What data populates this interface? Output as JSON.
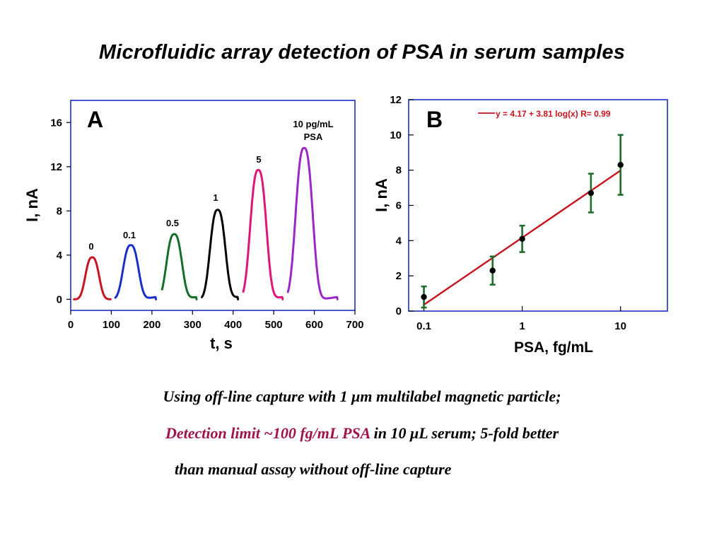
{
  "slide": {
    "title": "Microfluidic array detection of PSA in serum samples",
    "caption": {
      "line1": "Using off-line capture with 1 μm multilabel magnetic particle;",
      "line2_highlight": "Detection limit ~100 fg/mL PSA",
      "line2_rest": " in 10 μL serum; 5-fold better",
      "line3": " than manual assay without off-line capture",
      "highlight_color": "#a0124a"
    }
  },
  "chart_data": [
    {
      "type": "line",
      "panel_label": "A",
      "xlabel": "t, s",
      "ylabel": "I, nA",
      "xlim": [
        0,
        700
      ],
      "ylim": [
        -1,
        18
      ],
      "xticks": [
        0,
        100,
        200,
        300,
        400,
        500,
        600,
        700
      ],
      "yticks": [
        0,
        4,
        8,
        12,
        16
      ],
      "grid": false,
      "series": [
        {
          "name": "0",
          "color": "#c8141e",
          "x_start": 8,
          "x_end": 98,
          "peak_x": 53,
          "peak": 3.8,
          "width": 16
        },
        {
          "name": "0.1",
          "color": "#1a2ec8",
          "x_start": 110,
          "x_end": 210,
          "peak_x": 148,
          "peak": 4.9,
          "width": 18
        },
        {
          "name": "0.5",
          "color": "#146e2a",
          "x_start": 225,
          "x_end": 310,
          "peak_x": 255,
          "peak": 5.9,
          "width": 18
        },
        {
          "name": "1",
          "color": "#000000",
          "x_start": 323,
          "x_end": 412,
          "peak_x": 362,
          "peak": 8.1,
          "width": 18
        },
        {
          "name": "5",
          "color": "#e0147a",
          "x_start": 425,
          "x_end": 522,
          "peak_x": 462,
          "peak": 11.7,
          "width": 19
        },
        {
          "name": "10 pg/mL PSA",
          "color": "#9a28c8",
          "x_start": 535,
          "x_end": 657,
          "peak_x": 575,
          "peak": 13.7,
          "width": 20
        }
      ],
      "annotations": [
        "0",
        "0.1",
        "0.5",
        "1",
        "5",
        "10 pg/mL",
        "PSA"
      ]
    },
    {
      "type": "scatter",
      "panel_label": "B",
      "xlabel": "PSA, fg/mL",
      "ylabel": "I, nA",
      "xscale": "log",
      "xlim": [
        0.07,
        30
      ],
      "ylim": [
        0,
        12
      ],
      "xticks": [
        0.1,
        1,
        10
      ],
      "xtick_labels": [
        "0.1",
        "1",
        "10"
      ],
      "yticks": [
        0,
        2,
        4,
        6,
        8,
        10,
        12
      ],
      "grid": false,
      "points": [
        {
          "x": 0.1,
          "y": 0.8,
          "err": 0.6
        },
        {
          "x": 0.5,
          "y": 2.3,
          "err": 0.8
        },
        {
          "x": 1,
          "y": 4.1,
          "err": 0.75
        },
        {
          "x": 5,
          "y": 6.7,
          "err": 1.1
        },
        {
          "x": 10,
          "y": 8.3,
          "err": 1.7
        }
      ],
      "fit": {
        "intercept": 4.17,
        "slope": 3.81,
        "x_range": [
          0.1,
          10
        ],
        "color": "#c8141e"
      },
      "legend": "y = 4.17 + 3.81 log(x)   R= 0.99",
      "legend_position": "top-right",
      "errorbar_color": "#1e6e2a"
    }
  ]
}
